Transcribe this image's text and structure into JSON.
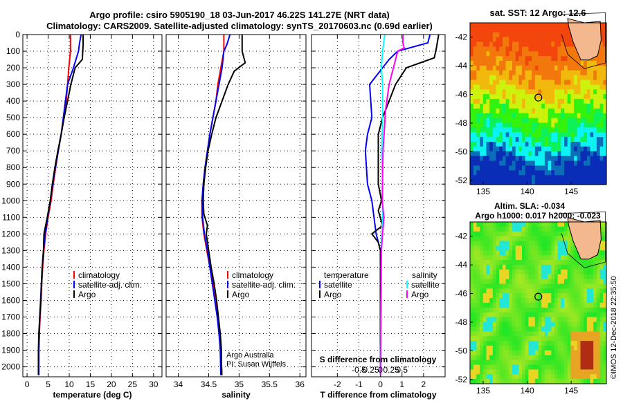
{
  "header": {
    "line1": "Argo profile: csiro 5905190_18 03-Jun-2017 46.22S 141.27E (NRT data)",
    "line2": "Climatology: CARS2009. Satellite-adjusted climatology: synTS_20170603.nc (0.69d earlier)"
  },
  "colors": {
    "climatology": "#ff0000",
    "satellite": "#0000ff",
    "argo": "#000000",
    "sat_salinity": "#00ffff",
    "argo_salinity": "#ff00ff"
  },
  "chart_data": [
    {
      "type": "line",
      "name": "temperature-panel",
      "xlabel": "temperature (deg C)",
      "ylabel": "",
      "xlim": [
        -1,
        32
      ],
      "ylim": [
        2060,
        0
      ],
      "y_reversed": true,
      "xticks": [
        0,
        5,
        10,
        15,
        20,
        25,
        30
      ],
      "yticks": [
        0,
        100,
        200,
        300,
        400,
        500,
        600,
        700,
        800,
        900,
        1000,
        1100,
        1200,
        1300,
        1400,
        1500,
        1600,
        1700,
        1800,
        1900,
        2000
      ],
      "grid": true,
      "legend": {
        "placement": "lower-right",
        "entries": [
          "climatology",
          "satellite-adj. clim.",
          "Argo"
        ]
      },
      "series": [
        {
          "name": "climatology",
          "color": "#ff0000",
          "points": [
            [
              10.3,
              0
            ],
            [
              10.3,
              100
            ],
            [
              9.9,
              200
            ],
            [
              9.6,
              300
            ],
            [
              9.3,
              400
            ],
            [
              8.7,
              500
            ],
            [
              8.1,
              600
            ],
            [
              7.4,
              700
            ],
            [
              6.8,
              800
            ],
            [
              6.2,
              900
            ],
            [
              5.7,
              1000
            ],
            [
              5.0,
              1100
            ],
            [
              4.4,
              1200
            ],
            [
              4.0,
              1300
            ],
            [
              3.7,
              1400
            ],
            [
              3.5,
              1500
            ],
            [
              3.3,
              1600
            ],
            [
              3.1,
              1700
            ],
            [
              2.9,
              1800
            ],
            [
              2.8,
              1900
            ],
            [
              2.7,
              2050
            ]
          ]
        },
        {
          "name": "satellite-adj. clim.",
          "color": "#0000ff",
          "points": [
            [
              12.8,
              0
            ],
            [
              12.4,
              60
            ],
            [
              12.2,
              100
            ],
            [
              11.0,
              200
            ],
            [
              9.6,
              300
            ],
            [
              9.1,
              400
            ],
            [
              8.6,
              500
            ],
            [
              8.1,
              600
            ],
            [
              7.4,
              700
            ],
            [
              6.7,
              800
            ],
            [
              6.1,
              900
            ],
            [
              5.5,
              1000
            ],
            [
              4.9,
              1100
            ],
            [
              4.3,
              1200
            ],
            [
              3.9,
              1300
            ],
            [
              3.6,
              1400
            ],
            [
              3.4,
              1500
            ],
            [
              3.2,
              1600
            ],
            [
              3.0,
              1700
            ],
            [
              2.9,
              1800
            ],
            [
              2.8,
              1900
            ],
            [
              2.8,
              2050
            ]
          ]
        },
        {
          "name": "Argo",
          "color": "#000000",
          "points": [
            [
              13.3,
              0
            ],
            [
              13.3,
              60
            ],
            [
              13.1,
              150
            ],
            [
              11.4,
              200
            ],
            [
              10.4,
              300
            ],
            [
              9.6,
              400
            ],
            [
              8.8,
              500
            ],
            [
              8.1,
              600
            ],
            [
              7.3,
              700
            ],
            [
              6.6,
              800
            ],
            [
              6.0,
              900
            ],
            [
              5.5,
              1000
            ],
            [
              4.8,
              1100
            ],
            [
              4.0,
              1200
            ],
            [
              3.9,
              1300
            ],
            [
              3.6,
              1400
            ],
            [
              3.4,
              1500
            ],
            [
              3.3,
              1600
            ],
            [
              3.0,
              1700
            ],
            [
              2.8,
              1800
            ],
            [
              2.7,
              1900
            ],
            [
              2.7,
              2050
            ]
          ]
        }
      ]
    },
    {
      "type": "line",
      "name": "salinity-panel",
      "xlabel": "salinity",
      "xlim": [
        33.8,
        36.1
      ],
      "ylim": [
        2060,
        0
      ],
      "y_reversed": true,
      "xticks": [
        34,
        34.5,
        35,
        35.5,
        36
      ],
      "xtick_labels": [
        "34",
        "34.5",
        "35",
        "35.5",
        "36"
      ],
      "grid": true,
      "legend": {
        "placement": "lower-right",
        "entries": [
          "climatology",
          "satellite-adj. clim.",
          "Argo"
        ]
      },
      "annotation": [
        "Argo Australia",
        "PI: Susan Wijffels"
      ],
      "series": [
        {
          "name": "climatology",
          "color": "#ff0000",
          "points": [
            [
              34.75,
              0
            ],
            [
              34.75,
              100
            ],
            [
              34.7,
              200
            ],
            [
              34.65,
              300
            ],
            [
              34.62,
              400
            ],
            [
              34.57,
              500
            ],
            [
              34.52,
              600
            ],
            [
              34.48,
              700
            ],
            [
              34.44,
              800
            ],
            [
              34.41,
              900
            ],
            [
              34.39,
              1000
            ],
            [
              34.39,
              1100
            ],
            [
              34.42,
              1200
            ],
            [
              34.47,
              1300
            ],
            [
              34.52,
              1400
            ],
            [
              34.57,
              1500
            ],
            [
              34.61,
              1600
            ],
            [
              34.65,
              1700
            ],
            [
              34.68,
              1800
            ],
            [
              34.7,
              1900
            ],
            [
              34.72,
              2050
            ]
          ]
        },
        {
          "name": "satellite-adj. clim.",
          "color": "#0000ff",
          "points": [
            [
              34.85,
              0
            ],
            [
              34.8,
              60
            ],
            [
              34.75,
              100
            ],
            [
              34.72,
              200
            ],
            [
              34.67,
              300
            ],
            [
              34.62,
              400
            ],
            [
              34.57,
              500
            ],
            [
              34.52,
              600
            ],
            [
              34.48,
              700
            ],
            [
              34.44,
              800
            ],
            [
              34.41,
              900
            ],
            [
              34.39,
              1000
            ],
            [
              34.4,
              1100
            ],
            [
              34.43,
              1200
            ],
            [
              34.48,
              1300
            ],
            [
              34.52,
              1400
            ],
            [
              34.56,
              1500
            ],
            [
              34.6,
              1600
            ],
            [
              34.64,
              1700
            ],
            [
              34.67,
              1800
            ],
            [
              34.69,
              1900
            ],
            [
              34.7,
              2050
            ]
          ]
        },
        {
          "name": "Argo",
          "color": "#000000",
          "points": [
            [
              35.05,
              0
            ],
            [
              35.05,
              100
            ],
            [
              35.1,
              170
            ],
            [
              34.92,
              220
            ],
            [
              34.82,
              300
            ],
            [
              34.72,
              400
            ],
            [
              34.62,
              500
            ],
            [
              34.55,
              600
            ],
            [
              34.49,
              700
            ],
            [
              34.45,
              800
            ],
            [
              34.42,
              900
            ],
            [
              34.41,
              1000
            ],
            [
              34.42,
              1080
            ],
            [
              34.48,
              1150
            ],
            [
              34.46,
              1200
            ],
            [
              34.5,
              1300
            ],
            [
              34.54,
              1400
            ],
            [
              34.59,
              1500
            ],
            [
              34.63,
              1600
            ],
            [
              34.66,
              1700
            ],
            [
              34.69,
              1800
            ],
            [
              34.71,
              1900
            ],
            [
              34.71,
              2050
            ]
          ]
        }
      ]
    },
    {
      "type": "line",
      "name": "difference-panel",
      "xlabel": "T difference from climatology",
      "xlabel2": "S difference from climatology",
      "xlim": [
        -3.2,
        3.0
      ],
      "ylim": [
        2060,
        0
      ],
      "y_reversed": true,
      "xticks": [
        -2,
        -1,
        0,
        1,
        2
      ],
      "xticks_s": [
        -0.5,
        -0.25,
        0,
        0.25,
        0.5
      ],
      "xtick_labels_s": [
        "-0.5",
        "-0.25",
        "0",
        "0.25",
        "0.5"
      ],
      "grid": true,
      "legend_left": {
        "title": "temperature",
        "entries": [
          "satellite",
          "Argo"
        ]
      },
      "legend_right": {
        "title": "salinity",
        "entries": [
          "satellite",
          "Argo"
        ]
      },
      "series": [
        {
          "name": "temperature satellite",
          "color": "#0000ff",
          "points": [
            [
              2.3,
              0
            ],
            [
              2.2,
              50
            ],
            [
              0.8,
              100
            ],
            [
              0.4,
              150
            ],
            [
              -0.5,
              300
            ],
            [
              -0.4,
              500
            ],
            [
              -0.6,
              600
            ],
            [
              -0.7,
              700
            ],
            [
              -0.6,
              900
            ],
            [
              -0.4,
              1000
            ],
            [
              -0.2,
              1200
            ],
            [
              0,
              1300
            ],
            [
              0,
              2050
            ]
          ]
        },
        {
          "name": "temperature Argo",
          "color": "#000000",
          "points": [
            [
              2.7,
              0
            ],
            [
              2.6,
              80
            ],
            [
              2.5,
              140
            ],
            [
              1.2,
              200
            ],
            [
              0.7,
              300
            ],
            [
              0.4,
              400
            ],
            [
              0.1,
              500
            ],
            [
              -0.1,
              600
            ],
            [
              -0.1,
              700
            ],
            [
              -0.1,
              900
            ],
            [
              0.05,
              1000
            ],
            [
              -0.1,
              1060
            ],
            [
              0.1,
              1150
            ],
            [
              -0.4,
              1200
            ],
            [
              -0.1,
              1250
            ],
            [
              0,
              1300
            ],
            [
              0,
              2050
            ]
          ]
        },
        {
          "name": "salinity satellite",
          "color": "#00ffff",
          "points": [
            [
              0.1,
              0
            ],
            [
              0.05,
              100
            ],
            [
              0.02,
              200
            ],
            [
              0.05,
              300
            ],
            [
              0.05,
              500
            ],
            [
              0.03,
              700
            ],
            [
              0.05,
              900
            ],
            [
              0.05,
              1000
            ],
            [
              0.05,
              1100
            ],
            [
              0.02,
              1300
            ],
            [
              0,
              2050
            ]
          ]
        },
        {
          "name": "salinity Argo",
          "color": "#ff00ff",
          "points": [
            [
              0.52,
              0
            ],
            [
              0.52,
              50
            ],
            [
              0.55,
              80
            ],
            [
              0.4,
              100
            ],
            [
              0.3,
              200
            ],
            [
              0.2,
              300
            ],
            [
              0.12,
              450
            ],
            [
              0.06,
              700
            ],
            [
              0.04,
              1000
            ],
            [
              0.08,
              1100
            ],
            [
              0.05,
              1200
            ],
            [
              0.02,
              1300
            ],
            [
              0,
              2050
            ]
          ]
        }
      ]
    },
    {
      "type": "heatmap",
      "name": "sst-map",
      "title": "sat. SST: 12 Argo: 12.6",
      "xlim": [
        133.5,
        149
      ],
      "ylim": [
        -52.3,
        -41
      ],
      "xticks": [
        135,
        140,
        145
      ],
      "yticks": [
        -42,
        -44,
        -46,
        -48,
        -50,
        -52
      ],
      "argo_position": [
        141.27,
        -46.22
      ]
    },
    {
      "type": "heatmap",
      "name": "sla-map",
      "title": "Altim. SLA: -0.034",
      "subtitle": "Argo h1000: 0.017 h2000: -0.023",
      "xlim": [
        133.5,
        149
      ],
      "ylim": [
        -52.3,
        -41
      ],
      "xticks": [
        135,
        140,
        145
      ],
      "yticks": [
        -42,
        -44,
        -46,
        -48,
        -50,
        -52
      ],
      "argo_position": [
        141.27,
        -46.22
      ]
    }
  ],
  "credit": "©IMOS 12-Dec-2018 22:35:50"
}
